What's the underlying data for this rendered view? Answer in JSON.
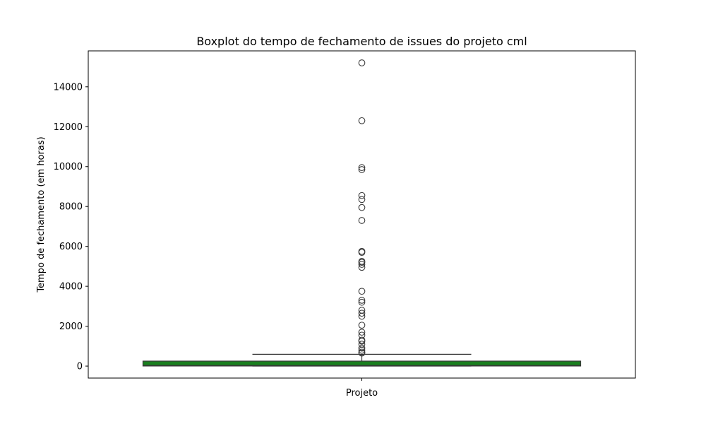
{
  "chart_data": {
    "type": "box",
    "title": "Boxplot do tempo de fechamento de issues do projeto cml",
    "xlabel": "",
    "ylabel": "Tempo de fechamento (em horas)",
    "categories": [
      "Projeto"
    ],
    "ylim": [
      -600,
      15800
    ],
    "yticks": [
      0,
      2000,
      4000,
      6000,
      8000,
      10000,
      12000,
      14000
    ],
    "ytick_labels": [
      "0",
      "2000",
      "4000",
      "6000",
      "8000",
      "10000",
      "12000",
      "14000"
    ],
    "grid": false,
    "box": {
      "min": 0,
      "q1": 5,
      "median": 30,
      "q3": 250,
      "max": 590
    },
    "outliers": [
      15200,
      12300,
      9950,
      9850,
      8550,
      8350,
      7950,
      7300,
      5750,
      5700,
      5250,
      5200,
      5100,
      4950,
      3750,
      3300,
      3200,
      2800,
      2650,
      2500,
      2050,
      1700,
      1550,
      1300,
      1250,
      1100,
      900,
      800,
      700,
      650
    ],
    "colors": {
      "box_fill": "#1a7f1f",
      "box_edge": "#3a3a3a",
      "whisker": "#3a3a3a",
      "outlier_edge": "#3a3a3a"
    }
  }
}
